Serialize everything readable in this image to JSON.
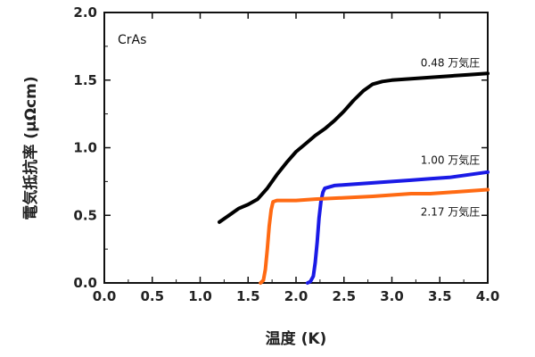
{
  "chart_data": {
    "type": "line",
    "panel_label": "CrAs",
    "xlabel": "温度 (K)",
    "ylabel": "電気抵抗率 (μΩcm)",
    "xlim": [
      0.0,
      4.0
    ],
    "ylim": [
      0.0,
      2.0
    ],
    "xticks": [
      "0.0",
      "0.5",
      "1.0",
      "1.5",
      "2.0",
      "2.5",
      "3.0",
      "3.5",
      "4.0"
    ],
    "yticks": [
      "0.0",
      "0.5",
      "1.0",
      "1.5",
      "2.0"
    ],
    "x_tick_values": [
      0.0,
      0.5,
      1.0,
      1.5,
      2.0,
      2.5,
      3.0,
      3.5,
      4.0
    ],
    "y_tick_values": [
      0.0,
      0.5,
      1.0,
      1.5,
      2.0
    ],
    "grid": false,
    "series": [
      {
        "name": "0.48 万気圧",
        "color": "#000000",
        "points": [
          [
            1.2,
            0.45
          ],
          [
            1.3,
            0.5
          ],
          [
            1.4,
            0.55
          ],
          [
            1.5,
            0.58
          ],
          [
            1.6,
            0.62
          ],
          [
            1.7,
            0.7
          ],
          [
            1.8,
            0.8
          ],
          [
            1.9,
            0.89
          ],
          [
            2.0,
            0.97
          ],
          [
            2.1,
            1.03
          ],
          [
            2.2,
            1.09
          ],
          [
            2.3,
            1.14
          ],
          [
            2.4,
            1.2
          ],
          [
            2.5,
            1.27
          ],
          [
            2.6,
            1.35
          ],
          [
            2.7,
            1.42
          ],
          [
            2.8,
            1.47
          ],
          [
            2.9,
            1.49
          ],
          [
            3.0,
            1.5
          ],
          [
            3.2,
            1.51
          ],
          [
            3.4,
            1.52
          ],
          [
            3.6,
            1.53
          ],
          [
            3.8,
            1.54
          ],
          [
            4.0,
            1.55
          ]
        ]
      },
      {
        "name": "1.00 万気圧",
        "color": "#1a1ae6",
        "points": [
          [
            2.12,
            0.0
          ],
          [
            2.15,
            0.01
          ],
          [
            2.18,
            0.05
          ],
          [
            2.2,
            0.15
          ],
          [
            2.22,
            0.3
          ],
          [
            2.24,
            0.48
          ],
          [
            2.26,
            0.6
          ],
          [
            2.28,
            0.67
          ],
          [
            2.3,
            0.7
          ],
          [
            2.4,
            0.72
          ],
          [
            2.6,
            0.73
          ],
          [
            2.8,
            0.74
          ],
          [
            3.0,
            0.75
          ],
          [
            3.2,
            0.76
          ],
          [
            3.4,
            0.77
          ],
          [
            3.6,
            0.78
          ],
          [
            3.8,
            0.8
          ],
          [
            4.0,
            0.82
          ]
        ]
      },
      {
        "name": "2.17 万気圧",
        "color": "#ff6a13",
        "points": [
          [
            1.63,
            0.0
          ],
          [
            1.66,
            0.02
          ],
          [
            1.68,
            0.1
          ],
          [
            1.7,
            0.25
          ],
          [
            1.72,
            0.42
          ],
          [
            1.74,
            0.54
          ],
          [
            1.76,
            0.6
          ],
          [
            1.8,
            0.61
          ],
          [
            1.9,
            0.61
          ],
          [
            2.0,
            0.61
          ],
          [
            2.2,
            0.62
          ],
          [
            2.5,
            0.63
          ],
          [
            2.8,
            0.64
          ],
          [
            3.0,
            0.65
          ],
          [
            3.2,
            0.66
          ],
          [
            3.4,
            0.66
          ],
          [
            3.6,
            0.67
          ],
          [
            3.8,
            0.68
          ],
          [
            4.0,
            0.69
          ]
        ]
      }
    ],
    "series_label_positions_data": [
      {
        "x": 3.3,
        "y": 1.6
      },
      {
        "x": 3.3,
        "y": 0.88
      },
      {
        "x": 3.3,
        "y": 0.5
      }
    ]
  }
}
